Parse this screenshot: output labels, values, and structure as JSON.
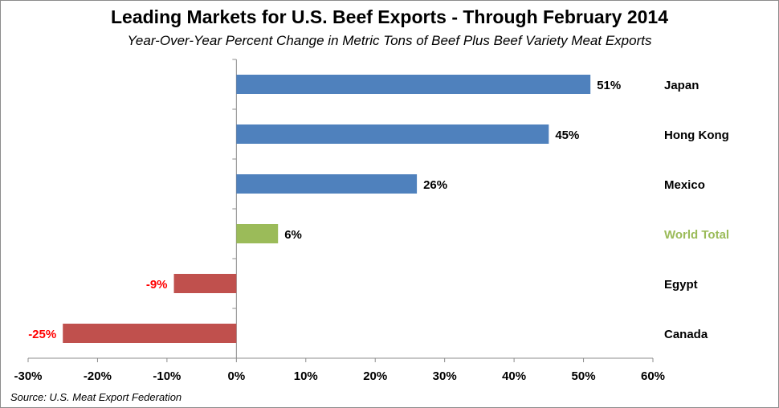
{
  "title": "Leading Markets for U.S. Beef Exports - Through February 2014",
  "subtitle": "Year-Over-Year Percent Change in Metric Tons of Beef Plus Beef Variety Meat Exports",
  "source": "Source: U.S. Meat Export Federation",
  "chart_data": {
    "type": "bar",
    "orientation": "horizontal",
    "categories": [
      "Japan",
      "Hong Kong",
      "Mexico",
      "World Total",
      "Egypt",
      "Canada"
    ],
    "values": [
      51,
      45,
      26,
      6,
      -9,
      -25
    ],
    "value_labels": [
      "51%",
      "45%",
      "26%",
      "6%",
      "-9%",
      "-25%"
    ],
    "xlim": [
      -30,
      60
    ],
    "x_ticks": [
      -30,
      -20,
      -10,
      0,
      10,
      20,
      30,
      40,
      50,
      60
    ],
    "x_tick_labels": [
      "-30%",
      "-20%",
      "-10%",
      "0%",
      "10%",
      "20%",
      "30%",
      "40%",
      "50%",
      "60%"
    ],
    "grid": false,
    "colors": {
      "positive": "#4f81bd",
      "total": "#9bbb59",
      "negative": "#c0504d",
      "negative_label": "#ff0000",
      "total_label": "#9bbb59",
      "axis": "#8c8c8c"
    }
  }
}
